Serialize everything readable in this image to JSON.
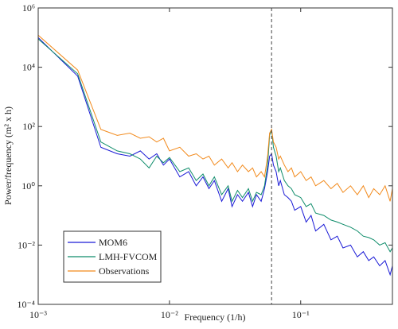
{
  "chart_data": {
    "type": "line",
    "x_label": "Frequency (1/h)",
    "y_label": "Power/frequency  (m² x h)",
    "x": [
      0.001,
      0.002,
      0.003,
      0.004,
      0.005,
      0.006,
      0.007,
      0.008,
      0.009,
      0.01,
      0.012,
      0.014,
      0.016,
      0.018,
      0.02,
      0.022,
      0.025,
      0.028,
      0.03,
      0.033,
      0.036,
      0.04,
      0.043,
      0.046,
      0.05,
      0.053,
      0.056,
      0.058,
      0.06,
      0.062,
      0.065,
      0.068,
      0.07,
      0.075,
      0.08,
      0.085,
      0.09,
      0.1,
      0.11,
      0.12,
      0.13,
      0.15,
      0.17,
      0.19,
      0.21,
      0.24,
      0.27,
      0.3,
      0.33,
      0.36,
      0.4,
      0.44,
      0.48,
      0.5
    ],
    "series": [
      {
        "name": "MOM6",
        "color": "#1a1ad6",
        "values": [
          100000,
          5000,
          20,
          12,
          10,
          15,
          8,
          12,
          5,
          8,
          2,
          3,
          1,
          2,
          0.8,
          1.5,
          0.3,
          0.8,
          0.2,
          0.5,
          0.3,
          0.6,
          0.2,
          0.5,
          0.3,
          0.8,
          3,
          10,
          12,
          5,
          3,
          1,
          1.5,
          0.5,
          0.4,
          0.3,
          0.15,
          0.2,
          0.06,
          0.1,
          0.03,
          0.05,
          0.015,
          0.02,
          0.008,
          0.01,
          0.004,
          0.006,
          0.003,
          0.004,
          0.002,
          0.003,
          0.001,
          0.002
        ]
      },
      {
        "name": "LMH-FVCOM",
        "color": "#0e8c6a",
        "values": [
          90000,
          6000,
          30,
          15,
          12,
          8,
          4,
          10,
          6,
          9,
          3,
          4,
          1.5,
          2.5,
          1,
          2,
          0.5,
          1,
          0.3,
          0.7,
          0.4,
          0.8,
          0.3,
          0.6,
          0.5,
          1,
          5,
          50,
          80,
          20,
          10,
          3,
          4,
          1.5,
          1,
          0.8,
          0.5,
          0.4,
          0.2,
          0.25,
          0.12,
          0.1,
          0.07,
          0.06,
          0.05,
          0.04,
          0.03,
          0.02,
          0.018,
          0.015,
          0.01,
          0.012,
          0.006,
          0.008
        ]
      },
      {
        "name": "Observations",
        "color": "#f28a1c",
        "values": [
          120000,
          8000,
          80,
          50,
          60,
          40,
          45,
          30,
          40,
          15,
          20,
          10,
          12,
          8,
          10,
          5,
          8,
          4,
          6,
          3,
          5,
          3,
          4,
          2,
          3,
          2,
          10,
          60,
          80,
          30,
          20,
          8,
          10,
          5,
          3,
          4,
          2,
          3,
          1.5,
          2,
          1,
          1.5,
          0.8,
          1.2,
          0.6,
          1,
          0.5,
          1,
          0.4,
          0.8,
          0.5,
          1,
          0.3,
          0.8
        ]
      }
    ],
    "xscale": "log",
    "yscale": "log",
    "xlim": [
      0.001,
      0.5
    ],
    "ylim": [
      0.0001,
      1000000
    ],
    "xticks": [
      {
        "value": 0.001,
        "label": "10⁻³"
      },
      {
        "value": 0.01,
        "label": "10⁻²"
      },
      {
        "value": 0.1,
        "label": "10⁻¹"
      }
    ],
    "yticks": [
      {
        "value": 0.0001,
        "label": "10⁻⁴"
      },
      {
        "value": 0.01,
        "label": "10⁻²"
      },
      {
        "value": 1,
        "label": "10⁰"
      },
      {
        "value": 100,
        "label": "10²"
      },
      {
        "value": 10000,
        "label": "10⁴"
      },
      {
        "value": 1000000,
        "label": "10⁶"
      }
    ],
    "reference_line_x": 0.06,
    "legend": "lower-left"
  }
}
